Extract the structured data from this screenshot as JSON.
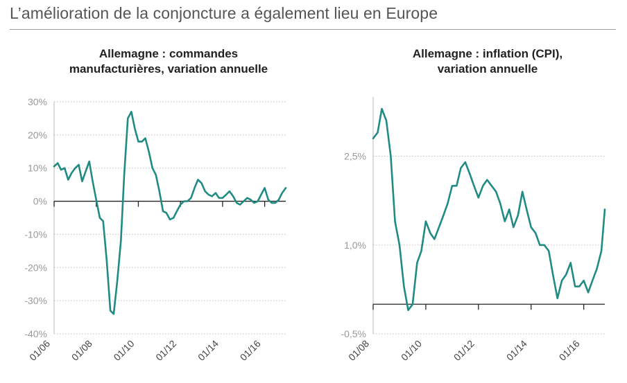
{
  "page": {
    "title": "L’amélioration de la conjoncture a également lieu en Europe",
    "colors": {
      "line": "#1f8b82",
      "grid": "#bdbdbd",
      "axis": "#222222",
      "title_rule": "#9a9a9a"
    }
  },
  "chart_data": [
    {
      "type": "line",
      "title": [
        "Allemagne : commandes",
        "manufacturières, variation annuelle"
      ],
      "xlabel": "",
      "ylabel": "",
      "ylim": [
        -40,
        30
      ],
      "xlim": [
        2006.0,
        2017.0
      ],
      "yticks": [
        30,
        20,
        10,
        0,
        -10,
        -20,
        -30,
        -40
      ],
      "ytick_labels": [
        "30%",
        "20%",
        "10%",
        "0%",
        "-10%",
        "-20%",
        "-30%",
        "-40%"
      ],
      "xticks": [
        2006,
        2008,
        2010,
        2012,
        2014,
        2016
      ],
      "xtick_labels": [
        "01/06",
        "01/08",
        "01/10",
        "01/12",
        "01/14",
        "01/16"
      ],
      "grid": "horizontal dotted",
      "zero_line": true,
      "series": [
        {
          "x": [
            2006.0,
            2006.17,
            2006.33,
            2006.5,
            2006.67,
            2006.83,
            2007.0,
            2007.17,
            2007.33,
            2007.5,
            2007.67,
            2007.83,
            2008.0,
            2008.17,
            2008.33,
            2008.5,
            2008.67,
            2008.83,
            2009.0,
            2009.17,
            2009.33,
            2009.5,
            2009.67,
            2009.83,
            2010.0,
            2010.17,
            2010.33,
            2010.5,
            2010.67,
            2010.83,
            2011.0,
            2011.17,
            2011.33,
            2011.5,
            2011.67,
            2011.83,
            2012.0,
            2012.17,
            2012.33,
            2012.5,
            2012.67,
            2012.83,
            2013.0,
            2013.17,
            2013.33,
            2013.5,
            2013.67,
            2013.83,
            2014.0,
            2014.17,
            2014.33,
            2014.5,
            2014.67,
            2014.83,
            2015.0,
            2015.17,
            2015.33,
            2015.5,
            2015.67,
            2015.83,
            2016.0,
            2016.17,
            2016.33,
            2016.5,
            2016.67,
            2016.83,
            2017.0
          ],
          "y": [
            10.5,
            11.5,
            9.5,
            10.0,
            6.5,
            8.5,
            10.0,
            11.0,
            6.0,
            9.0,
            12.0,
            6.0,
            0.5,
            -5.0,
            -6.0,
            -18.0,
            -33.0,
            -34.0,
            -24.0,
            -12.0,
            8.0,
            25.0,
            27.0,
            22.0,
            18.0,
            18.0,
            19.0,
            15.0,
            10.0,
            8.0,
            3.0,
            -3.0,
            -3.5,
            -5.5,
            -5.0,
            -3.0,
            -1.0,
            0.0,
            0.0,
            1.0,
            4.0,
            6.5,
            5.5,
            3.0,
            2.0,
            1.5,
            2.5,
            1.0,
            1.0,
            2.0,
            3.0,
            1.5,
            -0.5,
            -1.0,
            0.0,
            1.0,
            0.5,
            -0.5,
            0.0,
            2.0,
            4.0,
            0.5,
            -0.5,
            -0.5,
            0.5,
            2.5,
            4.0
          ]
        }
      ]
    },
    {
      "type": "line",
      "title": [
        "Allemagne : inflation (CPI),",
        "variation annuelle"
      ],
      "xlabel": "",
      "ylabel": "",
      "ylim": [
        -0.5,
        3.5
      ],
      "xlim": [
        2008.0,
        2016.8
      ],
      "yticks": [
        2.5,
        1.0,
        -0.5
      ],
      "ytick_labels": [
        "2,5%",
        "1,0%",
        "-0,5%"
      ],
      "xticks": [
        2008,
        2010,
        2012,
        2014,
        2016
      ],
      "xtick_labels": [
        "01/08",
        "01/10",
        "01/12",
        "01/14",
        "01/16"
      ],
      "grid": "horizontal dotted",
      "zero_line": true,
      "series": [
        {
          "x": [
            2008.0,
            2008.17,
            2008.33,
            2008.5,
            2008.67,
            2008.83,
            2009.0,
            2009.17,
            2009.33,
            2009.5,
            2009.67,
            2009.83,
            2010.0,
            2010.17,
            2010.33,
            2010.5,
            2010.67,
            2010.83,
            2011.0,
            2011.17,
            2011.33,
            2011.5,
            2011.67,
            2011.83,
            2012.0,
            2012.17,
            2012.33,
            2012.5,
            2012.67,
            2012.83,
            2013.0,
            2013.17,
            2013.33,
            2013.5,
            2013.67,
            2013.83,
            2014.0,
            2014.17,
            2014.33,
            2014.5,
            2014.67,
            2014.83,
            2015.0,
            2015.17,
            2015.33,
            2015.5,
            2015.67,
            2015.83,
            2016.0,
            2016.17,
            2016.33,
            2016.5,
            2016.67,
            2016.8
          ],
          "y": [
            2.8,
            2.9,
            3.3,
            3.1,
            2.5,
            1.4,
            1.0,
            0.3,
            -0.1,
            0.0,
            0.7,
            0.9,
            1.4,
            1.2,
            1.1,
            1.3,
            1.5,
            1.7,
            2.0,
            2.0,
            2.3,
            2.4,
            2.2,
            2.0,
            1.8,
            2.0,
            2.1,
            2.0,
            1.9,
            1.7,
            1.4,
            1.6,
            1.3,
            1.5,
            1.9,
            1.6,
            1.3,
            1.2,
            1.0,
            1.0,
            0.9,
            0.5,
            0.1,
            0.4,
            0.5,
            0.7,
            0.3,
            0.3,
            0.4,
            0.2,
            0.4,
            0.6,
            0.9,
            1.6
          ]
        }
      ]
    }
  ]
}
